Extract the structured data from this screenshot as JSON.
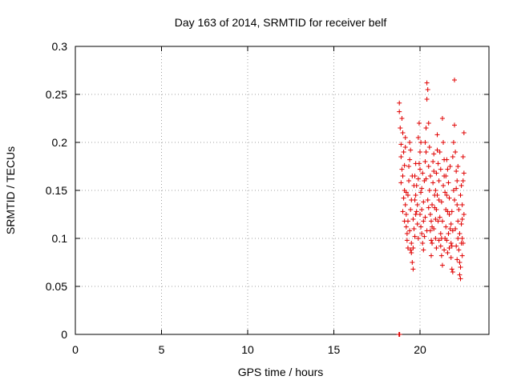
{
  "chart_data": {
    "type": "scatter",
    "title": "Day 163 of 2014, SRMTID for receiver belf",
    "xlabel": "GPS time / hours",
    "ylabel": "SRMTID / TECUs",
    "xlim": [
      0,
      24
    ],
    "ylim": [
      0,
      0.3
    ],
    "x_ticks": [
      0,
      5,
      10,
      15,
      20
    ],
    "y_ticks": [
      0,
      0.05,
      0.1,
      0.15,
      0.2,
      0.25,
      0.3
    ],
    "x_tick_labels": [
      "0",
      "5",
      "10",
      "15",
      "20"
    ],
    "y_tick_labels": [
      "0",
      "0.05",
      "0.1",
      "0.15",
      "0.2",
      "0.25",
      "0.3"
    ],
    "grid": true,
    "marker": "plus",
    "color": "#e00000",
    "points": [
      [
        18.8,
        0.241
      ],
      [
        18.8,
        0.232
      ],
      [
        18.85,
        0.215
      ],
      [
        18.9,
        0.198
      ],
      [
        18.9,
        0.185
      ],
      [
        18.95,
        0.172
      ],
      [
        19.0,
        0.165
      ],
      [
        19.0,
        0.21
      ],
      [
        19.05,
        0.19
      ],
      [
        19.1,
        0.176
      ],
      [
        19.1,
        0.15
      ],
      [
        19.15,
        0.135
      ],
      [
        19.2,
        0.125
      ],
      [
        19.2,
        0.112
      ],
      [
        19.25,
        0.105
      ],
      [
        19.3,
        0.118
      ],
      [
        19.3,
        0.145
      ],
      [
        19.35,
        0.16
      ],
      [
        19.4,
        0.182
      ],
      [
        19.4,
        0.2
      ],
      [
        19.45,
        0.13
      ],
      [
        19.5,
        0.095
      ],
      [
        19.5,
        0.085
      ],
      [
        19.55,
        0.075
      ],
      [
        19.6,
        0.068
      ],
      [
        19.6,
        0.09
      ],
      [
        19.65,
        0.11
      ],
      [
        19.7,
        0.14
      ],
      [
        19.7,
        0.165
      ],
      [
        19.75,
        0.178
      ],
      [
        19.8,
        0.155
      ],
      [
        19.8,
        0.128
      ],
      [
        19.85,
        0.115
      ],
      [
        19.9,
        0.1
      ],
      [
        19.9,
        0.205
      ],
      [
        19.95,
        0.22
      ],
      [
        20.0,
        0.19
      ],
      [
        20.0,
        0.172
      ],
      [
        20.05,
        0.148
      ],
      [
        20.1,
        0.13
      ],
      [
        20.1,
        0.105
      ],
      [
        20.15,
        0.095
      ],
      [
        20.2,
        0.118
      ],
      [
        20.2,
        0.138
      ],
      [
        20.25,
        0.16
      ],
      [
        20.3,
        0.18
      ],
      [
        20.3,
        0.2
      ],
      [
        20.35,
        0.215
      ],
      [
        20.4,
        0.245
      ],
      [
        20.4,
        0.262
      ],
      [
        20.45,
        0.255
      ],
      [
        20.5,
        0.22
      ],
      [
        20.5,
        0.175
      ],
      [
        20.55,
        0.15
      ],
      [
        20.6,
        0.125
      ],
      [
        20.6,
        0.108
      ],
      [
        20.65,
        0.098
      ],
      [
        20.7,
        0.112
      ],
      [
        20.7,
        0.135
      ],
      [
        20.75,
        0.158
      ],
      [
        20.8,
        0.17
      ],
      [
        20.8,
        0.188
      ],
      [
        20.85,
        0.145
      ],
      [
        20.9,
        0.12
      ],
      [
        20.9,
        0.1
      ],
      [
        20.95,
        0.09
      ],
      [
        21.0,
        0.208
      ],
      [
        21.0,
        0.192
      ],
      [
        21.05,
        0.178
      ],
      [
        21.1,
        0.16
      ],
      [
        21.1,
        0.14
      ],
      [
        21.15,
        0.122
      ],
      [
        21.2,
        0.105
      ],
      [
        21.2,
        0.092
      ],
      [
        21.25,
        0.082
      ],
      [
        21.3,
        0.072
      ],
      [
        21.3,
        0.225
      ],
      [
        21.35,
        0.2
      ],
      [
        21.4,
        0.182
      ],
      [
        21.4,
        0.165
      ],
      [
        21.45,
        0.148
      ],
      [
        21.5,
        0.13
      ],
      [
        21.5,
        0.112
      ],
      [
        21.55,
        0.098
      ],
      [
        21.6,
        0.085
      ],
      [
        21.6,
        0.172
      ],
      [
        21.65,
        0.158
      ],
      [
        21.7,
        0.142
      ],
      [
        21.7,
        0.125
      ],
      [
        21.75,
        0.11
      ],
      [
        21.8,
        0.095
      ],
      [
        21.8,
        0.08
      ],
      [
        21.85,
        0.068
      ],
      [
        21.9,
        0.065
      ],
      [
        21.9,
        0.185
      ],
      [
        21.95,
        0.2
      ],
      [
        22.0,
        0.265
      ],
      [
        22.0,
        0.218
      ],
      [
        22.05,
        0.19
      ],
      [
        22.1,
        0.17
      ],
      [
        22.1,
        0.152
      ],
      [
        22.15,
        0.135
      ],
      [
        22.2,
        0.118
      ],
      [
        22.2,
        0.1
      ],
      [
        22.25,
        0.088
      ],
      [
        22.3,
        0.075
      ],
      [
        22.3,
        0.062
      ],
      [
        22.35,
        0.058
      ],
      [
        22.4,
        0.095
      ],
      [
        22.4,
        0.115
      ],
      [
        22.45,
        0.135
      ],
      [
        22.5,
        0.16
      ],
      [
        22.5,
        0.185
      ],
      [
        22.55,
        0.21
      ],
      [
        22.55,
        0.168
      ],
      [
        22.45,
        0.082
      ],
      [
        22.35,
        0.07
      ],
      [
        18.9,
        0.158
      ],
      [
        19.05,
        0.142
      ],
      [
        19.25,
        0.098
      ],
      [
        19.45,
        0.088
      ],
      [
        19.6,
        0.12
      ],
      [
        19.85,
        0.135
      ],
      [
        20.05,
        0.112
      ],
      [
        20.25,
        0.102
      ],
      [
        20.45,
        0.14
      ],
      [
        20.65,
        0.082
      ],
      [
        20.85,
        0.132
      ],
      [
        21.05,
        0.118
      ],
      [
        21.25,
        0.138
      ],
      [
        21.45,
        0.1
      ],
      [
        21.65,
        0.105
      ],
      [
        21.85,
        0.128
      ],
      [
        22.05,
        0.11
      ],
      [
        22.25,
        0.13
      ],
      [
        22.45,
        0.1
      ],
      [
        19.15,
        0.195
      ],
      [
        19.35,
        0.175
      ],
      [
        19.55,
        0.165
      ],
      [
        19.75,
        0.145
      ],
      [
        19.95,
        0.178
      ],
      [
        20.15,
        0.168
      ],
      [
        20.35,
        0.19
      ],
      [
        20.55,
        0.195
      ],
      [
        20.75,
        0.18
      ],
      [
        20.95,
        0.168
      ],
      [
        21.15,
        0.19
      ],
      [
        21.35,
        0.155
      ],
      [
        21.55,
        0.145
      ],
      [
        21.75,
        0.175
      ],
      [
        21.95,
        0.15
      ],
      [
        22.15,
        0.16
      ],
      [
        22.35,
        0.145
      ],
      [
        22.55,
        0.125
      ],
      [
        19.0,
        0.128
      ],
      [
        19.2,
        0.148
      ],
      [
        19.4,
        0.108
      ],
      [
        19.65,
        0.155
      ],
      [
        19.9,
        0.162
      ],
      [
        20.1,
        0.152
      ],
      [
        20.3,
        0.122
      ],
      [
        20.5,
        0.132
      ],
      [
        20.7,
        0.095
      ],
      [
        20.9,
        0.15
      ],
      [
        21.1,
        0.098
      ],
      [
        21.3,
        0.118
      ],
      [
        21.5,
        0.165
      ],
      [
        21.7,
        0.09
      ],
      [
        21.9,
        0.108
      ],
      [
        22.1,
        0.092
      ],
      [
        22.3,
        0.105
      ],
      [
        22.5,
        0.095
      ],
      [
        19.1,
        0.118
      ],
      [
        19.3,
        0.09
      ],
      [
        19.5,
        0.14
      ],
      [
        19.7,
        0.102
      ],
      [
        20.0,
        0.125
      ],
      [
        20.2,
        0.088
      ],
      [
        20.4,
        0.108
      ],
      [
        20.6,
        0.165
      ],
      [
        20.8,
        0.11
      ],
      [
        21.0,
        0.145
      ],
      [
        21.2,
        0.172
      ],
      [
        21.4,
        0.088
      ],
      [
        21.6,
        0.128
      ],
      [
        21.8,
        0.115
      ],
      [
        22.0,
        0.14
      ],
      [
        22.2,
        0.175
      ],
      [
        22.4,
        0.155
      ],
      [
        18.95,
        0.225
      ],
      [
        19.15,
        0.205
      ],
      [
        19.45,
        0.192
      ],
      [
        19.75,
        0.125
      ],
      [
        20.05,
        0.2
      ],
      [
        20.35,
        0.162
      ],
      [
        20.65,
        0.118
      ],
      [
        20.95,
        0.13
      ],
      [
        21.25,
        0.1
      ],
      [
        21.55,
        0.182
      ],
      [
        21.85,
        0.092
      ],
      [
        22.15,
        0.078
      ],
      [
        22.45,
        0.12
      ]
    ],
    "points_baseline": [
      [
        18.78,
        0.0
      ],
      [
        18.8,
        0.0
      ],
      [
        18.82,
        0.0
      ]
    ]
  }
}
